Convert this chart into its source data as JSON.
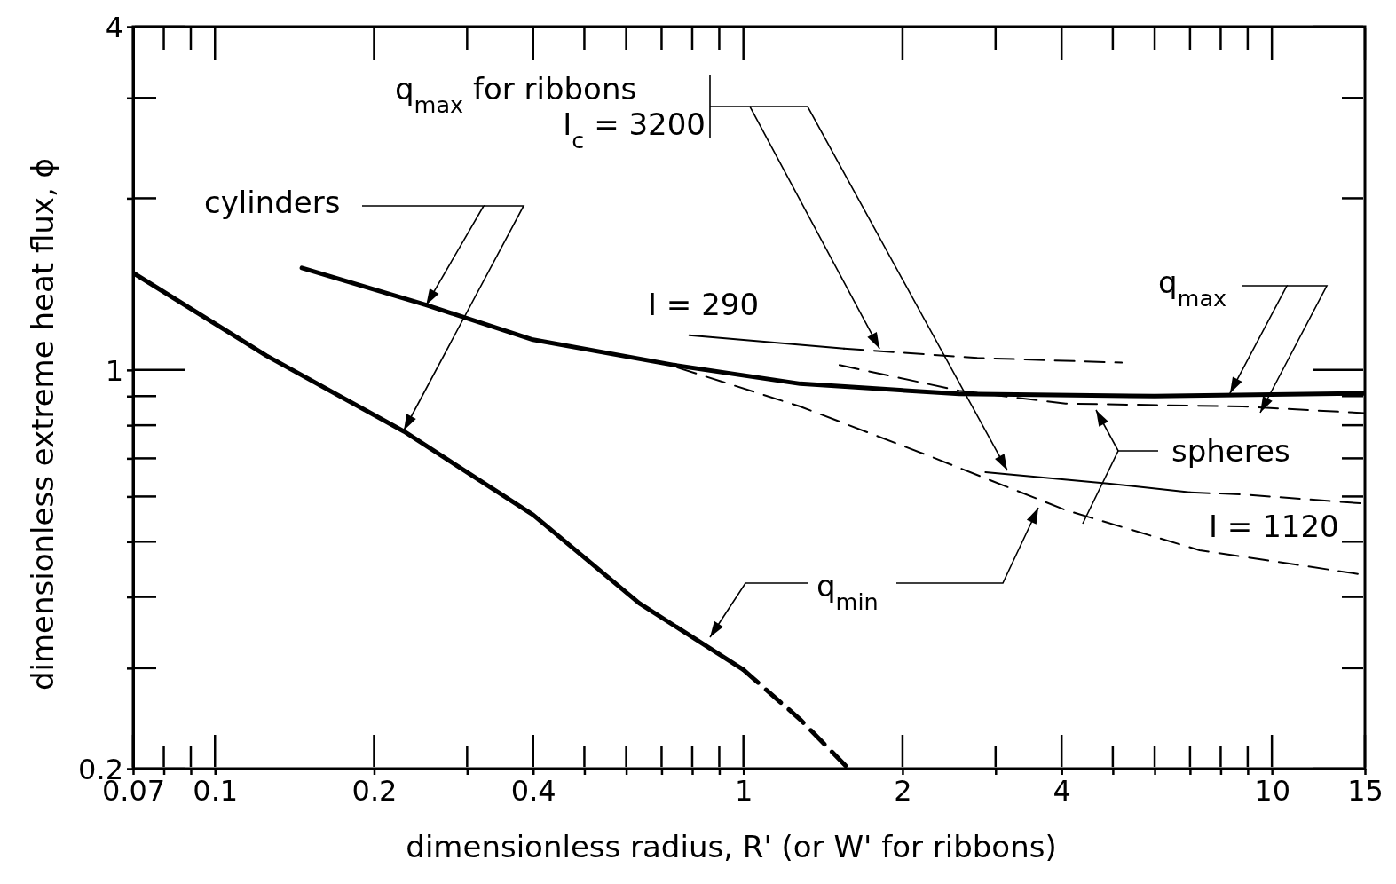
{
  "chart_data": {
    "type": "line",
    "xlabel": "dimensionless  radius, R' (or W' for ribbons)",
    "ylabel": "dimensionless extreme heat flux, ϕ",
    "log": "xy",
    "grid": false,
    "xlim": [
      0.07,
      15
    ],
    "ylim": [
      0.2,
      4
    ],
    "xticks": [
      0.07,
      {
        "value": 0.08,
        "label": null
      },
      {
        "value": 0.09,
        "label": null
      },
      0.1,
      0.2,
      {
        "value": 0.3,
        "label": null
      },
      0.4,
      {
        "value": 0.5,
        "label": null
      },
      {
        "value": 0.6,
        "label": null
      },
      {
        "value": 0.7,
        "label": null
      },
      {
        "value": 0.8,
        "label": null
      },
      {
        "value": 0.9,
        "label": null
      },
      1,
      2,
      {
        "value": 3,
        "label": null
      },
      4,
      {
        "value": 5,
        "label": null
      },
      {
        "value": 6,
        "label": null
      },
      {
        "value": 7,
        "label": null
      },
      {
        "value": 8,
        "label": null
      },
      {
        "value": 9,
        "label": null
      },
      10,
      15
    ],
    "yticks": [
      0.2,
      {
        "value": 0.3,
        "label": null
      },
      {
        "value": 0.4,
        "label": null
      },
      {
        "value": 0.5,
        "label": null
      },
      {
        "value": 0.6,
        "label": null
      },
      {
        "value": 0.7,
        "label": null
      },
      {
        "value": 0.8,
        "label": null
      },
      {
        "value": 0.9,
        "label": null
      },
      1,
      {
        "value": 2,
        "label": null
      },
      {
        "value": 3,
        "label": null
      },
      4
    ],
    "series": [
      {
        "color": "#000000",
        "line_style": "solid",
        "x": [
          0.146,
          0.251,
          0.4,
          0.74,
          1.28,
          2.56,
          6.0,
          15
        ],
        "values": [
          1.51,
          1.3,
          1.13,
          1.02,
          0.946,
          0.908,
          0.9,
          0.91
        ]
      },
      {
        "color": "#000000",
        "line_style": "solid",
        "x": [
          0.07,
          0.125,
          0.228,
          0.4,
          0.635,
          1.0
        ],
        "values": [
          1.48,
          1.06,
          0.78,
          0.557,
          0.39,
          0.298
        ]
      },
      {
        "color": "#000000",
        "line_style": "dashed",
        "x": [
          1.0,
          1.28,
          1.58
        ],
        "values": [
          0.298,
          0.244,
          0.2
        ]
      },
      {
        "color": "#000000",
        "line_style": "dashed",
        "x": [
          1.52,
          2.56,
          4.07,
          8.8,
          15
        ],
        "values": [
          1.02,
          0.92,
          0.873,
          0.863,
          0.84
        ]
      },
      {
        "color": "#000000",
        "line_style": "dashed",
        "x": [
          0.75,
          1.28,
          2.28,
          4.07,
          7.3,
          15
        ],
        "values": [
          1.01,
          0.863,
          0.703,
          0.568,
          0.483,
          0.437
        ]
      },
      {
        "color": "#000000",
        "line_style": "solid",
        "x": [
          0.79,
          1.55
        ],
        "values": [
          1.15,
          1.09
        ]
      },
      {
        "color": "#000000",
        "line_style": "dashed",
        "x": [
          1.55,
          2.77,
          5.2
        ],
        "values": [
          1.09,
          1.05,
          1.03
        ]
      },
      {
        "color": "#000000",
        "line_style": "solid",
        "x": [
          2.87,
          4.94,
          7.0
        ],
        "values": [
          0.662,
          0.632,
          0.61
        ]
      },
      {
        "color": "#000000",
        "line_style": "dashed",
        "x": [
          7.0,
          8.8,
          15
        ],
        "values": [
          0.61,
          0.605,
          0.583
        ]
      }
    ],
    "annotations": [
      "q$_{max}$  for ribbons",
      {
        "text": "I$_{c}$ = 3200",
        "x": 1.81,
        "y": 1.09
      },
      {
        "text": "cylinders",
        "x": 0.251,
        "y": 1.3
      },
      "I = 290",
      {
        "text": "q$_{max}$",
        "x": 8.33,
        "y": 0.91
      },
      "spheres",
      "I = 1120",
      "q$_{min}$"
    ]
  }
}
